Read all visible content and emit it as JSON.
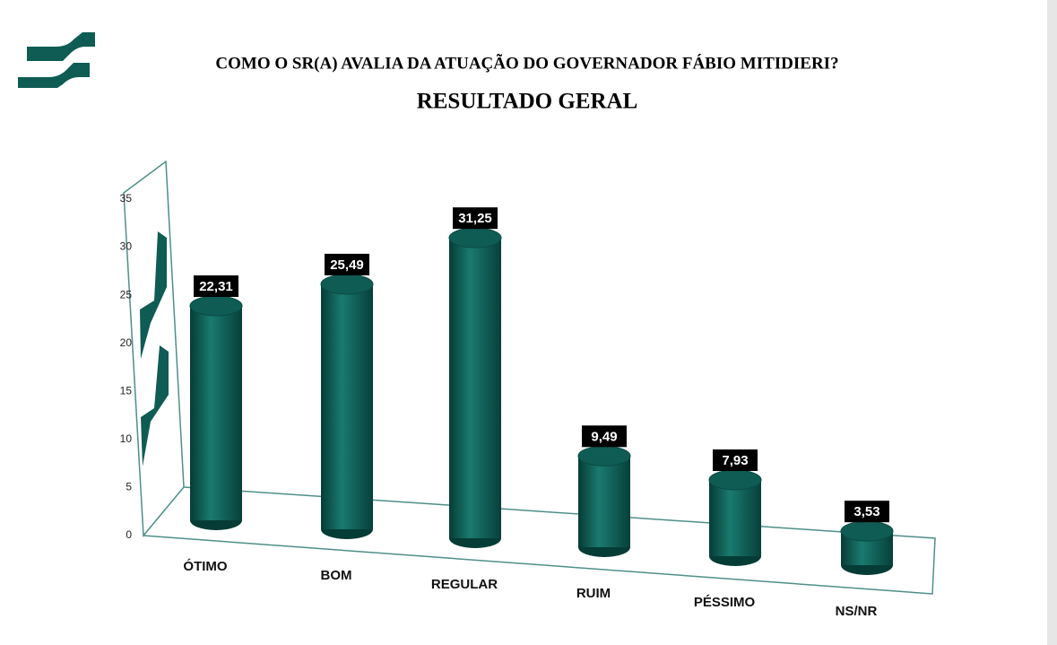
{
  "chart_data": {
    "type": "bar",
    "title": "COMO O SR(A) AVALIA DA ATUAÇÃO DO GOVERNADOR FÁBIO MITIDIERI?",
    "subtitle": "RESULTADO GERAL",
    "categories": [
      "ÓTIMO",
      "BOM",
      "REGULAR",
      "RUIM",
      "PÉSSIMO",
      "NS/NR"
    ],
    "values": [
      22.31,
      25.49,
      31.25,
      9.49,
      7.93,
      3.53
    ],
    "value_labels": [
      "22,31",
      "25,49",
      "31,25",
      "9,49",
      "7,93",
      "3,53"
    ],
    "color": "#0f5c54",
    "ylim": [
      0,
      35
    ],
    "yticks": [
      0,
      5,
      10,
      15,
      20,
      25,
      30,
      35
    ]
  }
}
